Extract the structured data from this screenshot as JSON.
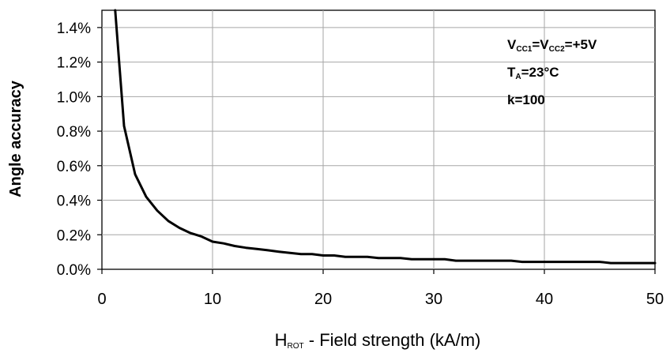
{
  "chart_data": {
    "type": "line",
    "xlabel": {
      "main": "H",
      "sub": "ROT",
      "rest": " - Field strength (kA/m)"
    },
    "ylabel": "Angle accuracy",
    "xlim": [
      0,
      50
    ],
    "ylim": [
      0,
      1.5
    ],
    "grid": true,
    "x_ticks": [
      0,
      10,
      20,
      30,
      40,
      50
    ],
    "x_tick_labels": [
      "0",
      "10",
      "20",
      "30",
      "40",
      "50"
    ],
    "y_ticks": [
      0,
      0.2,
      0.4,
      0.6,
      0.8,
      1.0,
      1.2,
      1.4
    ],
    "y_tick_labels": [
      "0.0%",
      "0.2%",
      "0.4%",
      "0.6%",
      "0.8%",
      "1.0%",
      "1.2%",
      "1.4%"
    ],
    "annotations": [
      {
        "parts": [
          {
            "t": "V"
          },
          {
            "t": "CC1",
            "sub": true
          },
          {
            "t": "=V"
          },
          {
            "t": "CC2",
            "sub": true
          },
          {
            "t": "=+5V"
          }
        ]
      },
      {
        "parts": [
          {
            "t": "T"
          },
          {
            "t": "A",
            "sub": true
          },
          {
            "t": "=23°C"
          }
        ]
      },
      {
        "parts": [
          {
            "t": "k=100"
          }
        ]
      }
    ],
    "series": [
      {
        "x": [
          1.2,
          2,
          3,
          4,
          5,
          6,
          7,
          8,
          9,
          10,
          11,
          12,
          13,
          14,
          15,
          16,
          17,
          18,
          19,
          20,
          21,
          22,
          23,
          24,
          25,
          26,
          27,
          28,
          29,
          30,
          31,
          32,
          33,
          34,
          35,
          36,
          37,
          38,
          39,
          40,
          41,
          42,
          43,
          44,
          45,
          46,
          47,
          48,
          49,
          50
        ],
        "y": [
          1.5,
          0.83,
          0.55,
          0.42,
          0.34,
          0.28,
          0.24,
          0.21,
          0.19,
          0.16,
          0.15,
          0.135,
          0.125,
          0.118,
          0.11,
          0.102,
          0.095,
          0.088,
          0.088,
          0.08,
          0.08,
          0.072,
          0.072,
          0.072,
          0.065,
          0.065,
          0.065,
          0.058,
          0.058,
          0.058,
          0.058,
          0.05,
          0.05,
          0.05,
          0.05,
          0.05,
          0.05,
          0.043,
          0.043,
          0.043,
          0.043,
          0.043,
          0.043,
          0.043,
          0.043,
          0.036,
          0.036,
          0.036,
          0.036,
          0.036
        ]
      }
    ]
  }
}
